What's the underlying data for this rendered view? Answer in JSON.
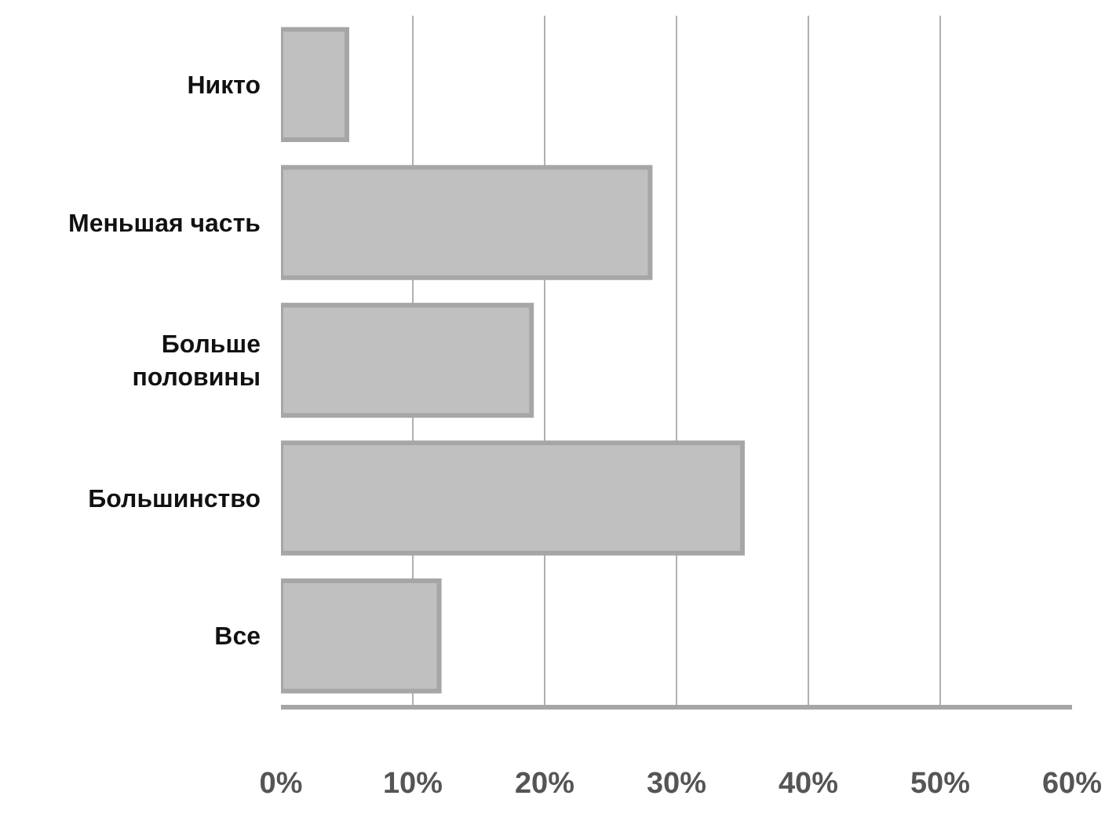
{
  "chart_data": {
    "type": "bar",
    "orientation": "horizontal",
    "categories": [
      "Никто",
      "Меньшая часть",
      "Больше\nполовины",
      "Большинство",
      "Все"
    ],
    "values": [
      5,
      28,
      19,
      35,
      12
    ],
    "color": "#c0c0c0",
    "xlim": [
      0,
      60
    ],
    "xticks": [
      {
        "value": 0,
        "label": "0%"
      },
      {
        "value": 10,
        "label": "10%"
      },
      {
        "value": 20,
        "label": "20%"
      },
      {
        "value": 30,
        "label": "30%"
      },
      {
        "value": 40,
        "label": "40%"
      },
      {
        "value": 50,
        "label": "50%"
      },
      {
        "value": 60,
        "label": "60%"
      }
    ],
    "grid": "x",
    "legend": false
  }
}
